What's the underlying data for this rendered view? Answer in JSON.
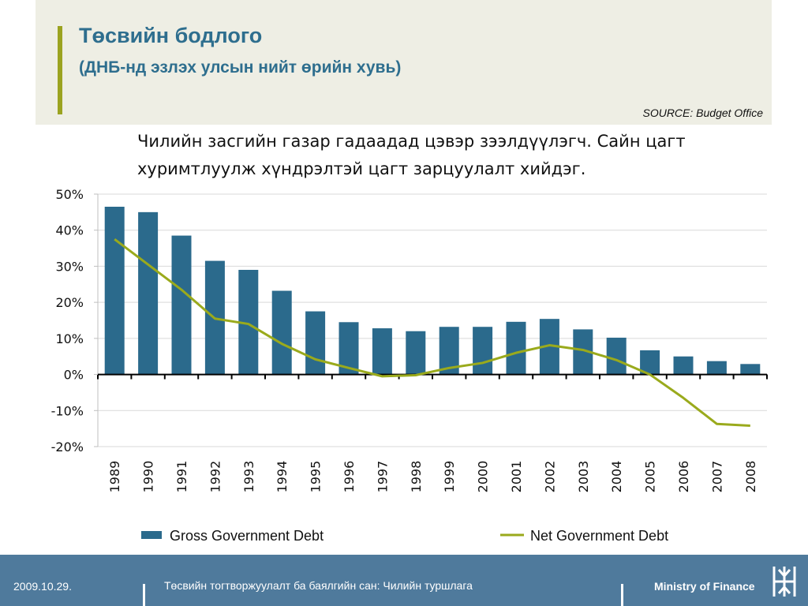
{
  "header": {
    "title": "Төсвийн бодлого",
    "subtitle": "(ДНБ-нд эзлэх улсын нийт өрийн хувь)",
    "source": "SOURCE: Budget Office"
  },
  "caption": "Чилийн засгийн газар гадаадад цэвэр зээлдүүлэгч. Сайн цагт хуримтлуулж хүндрэлтэй цагт зарцуулалт хийдэг.",
  "colors": {
    "bar": "#2b6a8c",
    "line": "#9aaa1c",
    "accent": "#9ba320",
    "footer": "#4f7a9c",
    "title": "#2e6e8e"
  },
  "chart_data": {
    "type": "bar",
    "categories": [
      "1989",
      "1990",
      "1991",
      "1992",
      "1993",
      "1994",
      "1995",
      "1996",
      "1997",
      "1998",
      "1999",
      "2000",
      "2001",
      "2002",
      "2003",
      "2004",
      "2005",
      "2006",
      "2007",
      "2008"
    ],
    "series": [
      {
        "name": "Gross Government Debt",
        "type": "bar",
        "values": [
          46.5,
          45,
          38.5,
          31.5,
          29,
          23.2,
          17.5,
          14.5,
          12.8,
          12,
          13.2,
          13.2,
          14.6,
          15.4,
          12.5,
          10.2,
          6.7,
          5,
          3.7,
          2.9
        ]
      },
      {
        "name": "Net Government Debt",
        "type": "line",
        "values": [
          37.5,
          30.5,
          23.5,
          15.5,
          14,
          8.5,
          4.2,
          1.8,
          -0.5,
          -0.2,
          1.8,
          3.2,
          6,
          8.1,
          6.8,
          4,
          0,
          -6.5,
          -13.7,
          -14.2
        ]
      }
    ],
    "ylim": [
      -20,
      50
    ],
    "yticks": [
      50,
      40,
      30,
      20,
      10,
      0,
      -10,
      -20
    ],
    "ytick_labels": [
      "50%",
      "40%",
      "30%",
      "20%",
      "10%",
      "0%",
      "-10%",
      "-20%"
    ],
    "grid": true,
    "legend_position": "bottom"
  },
  "footer": {
    "date": "2009.10.29.",
    "center": "Төсвийн тогтворжуулалт ба баялгийн сан: Чилийн туршлага",
    "org": "Ministry of Finance",
    "logo_icon": "ministry-logo-icon"
  }
}
